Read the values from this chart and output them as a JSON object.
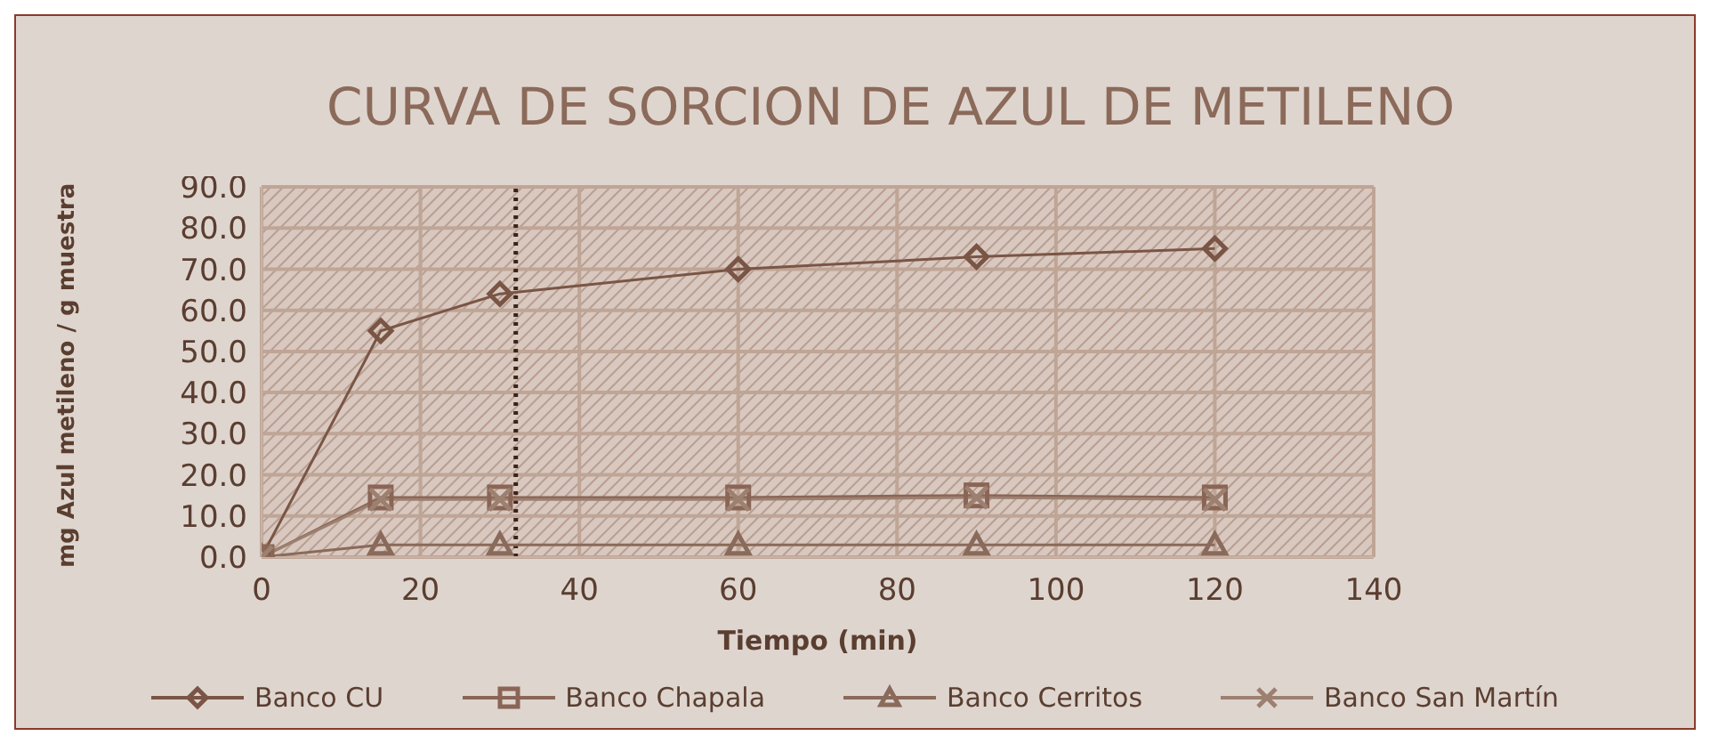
{
  "chart_data": {
    "type": "line",
    "title": "CURVA DE SORCION DE AZUL DE METILENO",
    "xlabel": "Tiempo (min)",
    "ylabel": "mg Azul metileno / g muestra",
    "x": [
      0,
      15,
      30,
      60,
      90,
      120
    ],
    "series": [
      {
        "name": "Banco CU",
        "color": "#7a5545",
        "marker": "diamond",
        "values": [
          0,
          55,
          64,
          70,
          73,
          75
        ]
      },
      {
        "name": "Banco Chapala",
        "color": "#8a6555",
        "marker": "square",
        "values": [
          0,
          14.5,
          14.5,
          14.5,
          15,
          14.5
        ]
      },
      {
        "name": "Banco Cerritos",
        "color": "#8a6a5a",
        "marker": "triangle",
        "values": [
          0,
          3,
          3,
          3,
          3,
          3
        ]
      },
      {
        "name": "Banco San Martín",
        "color": "#9c8070",
        "marker": "cross",
        "values": [
          0,
          14,
          14,
          14,
          14.5,
          14
        ]
      }
    ],
    "xlim": [
      0,
      140
    ],
    "xticks": [
      0,
      20,
      40,
      60,
      80,
      100,
      120,
      140
    ],
    "ylim": [
      0,
      90
    ],
    "yticks": [
      {
        "value": 0,
        "label": "0.0"
      },
      {
        "value": 10,
        "label": "10.0"
      },
      {
        "value": 20,
        "label": "20.0"
      },
      {
        "value": 30,
        "label": "30.0"
      },
      {
        "value": 40,
        "label": "40.0"
      },
      {
        "value": 50,
        "label": "50.0"
      },
      {
        "value": 60,
        "label": "60.0"
      },
      {
        "value": 70,
        "label": "70.0"
      },
      {
        "value": 80,
        "label": "80.0"
      },
      {
        "value": 90,
        "label": "90.0"
      }
    ],
    "ref_lines": [
      {
        "axis": "x",
        "value": 32,
        "color": "#3a2418",
        "line_style": "dotted"
      }
    ],
    "grid": true,
    "legend": "bottom"
  }
}
